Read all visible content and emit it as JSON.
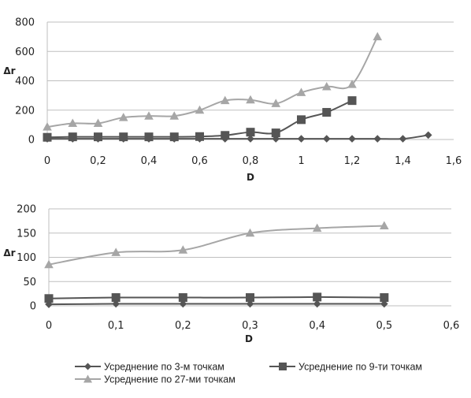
{
  "chart_data": [
    {
      "type": "line",
      "xlabel": "D",
      "ylabel": "Δr",
      "xlim": [
        0,
        1.6
      ],
      "ylim": [
        0,
        800
      ],
      "x_ticks": [
        "0",
        "0,2",
        "0,4",
        "0,6",
        "0,8",
        "1",
        "1,2",
        "1,4",
        "1,6"
      ],
      "y_ticks": [
        "0",
        "200",
        "400",
        "600",
        "800"
      ],
      "grid": "horizontal",
      "series": [
        {
          "name": "Усреднение по 3-м точкам",
          "marker": "diamond",
          "color": "#555555",
          "x": [
            0,
            0.1,
            0.2,
            0.3,
            0.4,
            0.5,
            0.6,
            0.7,
            0.8,
            0.9,
            1.0,
            1.1,
            1.2,
            1.3,
            1.4,
            1.5
          ],
          "y": [
            5,
            5,
            5,
            5,
            5,
            5,
            5,
            5,
            5,
            5,
            5,
            5,
            5,
            5,
            5,
            30
          ]
        },
        {
          "name": "Усреднение по 9-ти точкам",
          "marker": "square",
          "color": "#555555",
          "x": [
            0,
            0.1,
            0.2,
            0.3,
            0.4,
            0.5,
            0.6,
            0.7,
            0.8,
            0.9,
            1.0,
            1.1,
            1.2
          ],
          "y": [
            15,
            18,
            18,
            18,
            18,
            18,
            20,
            28,
            50,
            45,
            135,
            185,
            265
          ]
        },
        {
          "name": "Усреднение по 27-ми точкам",
          "marker": "triangle",
          "color": "#a6a6a6",
          "x": [
            0,
            0.1,
            0.2,
            0.3,
            0.4,
            0.5,
            0.6,
            0.7,
            0.8,
            0.9,
            1.0,
            1.1,
            1.2,
            1.3
          ],
          "y": [
            85,
            110,
            110,
            150,
            160,
            160,
            200,
            265,
            270,
            245,
            320,
            360,
            375,
            700
          ]
        }
      ]
    },
    {
      "type": "line",
      "xlabel": "D",
      "ylabel": "Δr",
      "xlim": [
        0,
        0.6
      ],
      "ylim": [
        0,
        200
      ],
      "x_ticks": [
        "0",
        "0,1",
        "0,2",
        "0,3",
        "0,4",
        "0,5",
        "0,6"
      ],
      "y_ticks": [
        "0",
        "50",
        "100",
        "150",
        "200"
      ],
      "grid": "horizontal",
      "series": [
        {
          "name": "Усреднение по 3-м точкам",
          "marker": "diamond",
          "color": "#555555",
          "x": [
            0,
            0.1,
            0.2,
            0.3,
            0.4,
            0.5
          ],
          "y": [
            3,
            4,
            4,
            4,
            4,
            4
          ]
        },
        {
          "name": "Усреднение по 9-ти точкам",
          "marker": "square",
          "color": "#555555",
          "x": [
            0,
            0.1,
            0.2,
            0.3,
            0.4,
            0.5
          ],
          "y": [
            15,
            17,
            17,
            17,
            18,
            17
          ]
        },
        {
          "name": "Усреднение по 27-ми точкам",
          "marker": "triangle",
          "color": "#a6a6a6",
          "x": [
            0,
            0.1,
            0.2,
            0.3,
            0.4,
            0.5
          ],
          "y": [
            85,
            110,
            115,
            150,
            160,
            165
          ]
        }
      ]
    }
  ],
  "legend": {
    "placement": "bottom",
    "entries": [
      {
        "label": "Усреднение по 3-м точкам",
        "marker": "diamond",
        "color": "#555555"
      },
      {
        "label": "Усреднение по 9-ти точкам",
        "marker": "square",
        "color": "#555555"
      },
      {
        "label": "Усреднение по 27-ми точкам",
        "marker": "triangle",
        "color": "#a6a6a6"
      }
    ]
  },
  "colors": {
    "grid": "#bfbfbf",
    "axis": "#888888"
  }
}
